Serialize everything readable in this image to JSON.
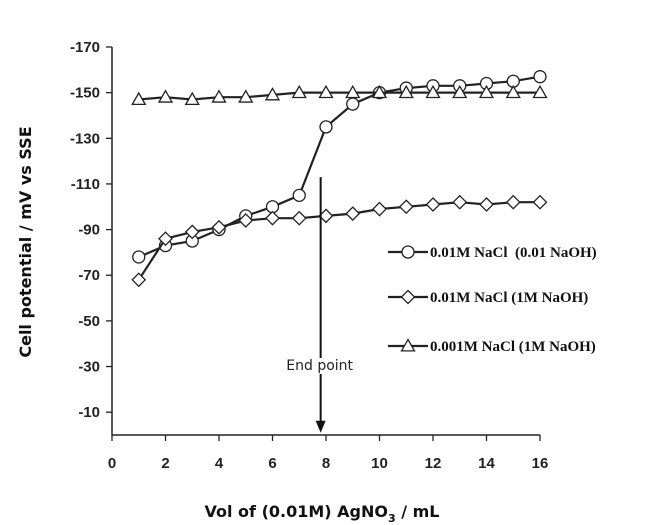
{
  "chart_data": {
    "type": "line",
    "xlabel_main": "Vol of (0.01M) AgNO",
    "xlabel_sub": "3",
    "xlabel_tail": " / mL",
    "ylabel": "Cell potential / mV vs SSE",
    "xlim": [
      0,
      16
    ],
    "ylim": [
      0,
      -170
    ],
    "x_ticks": [
      "0",
      "2",
      "4",
      "6",
      "8",
      "10",
      "12",
      "14",
      "16"
    ],
    "y_ticks": [
      "-10",
      "-30",
      "-50",
      "-70",
      "-90",
      "-110",
      "-130",
      "-150",
      "-170"
    ],
    "grid": false,
    "legend_position": "right",
    "annotation": {
      "text": "End point",
      "x": 7.8,
      "y_top": -113,
      "y_bottom": -1
    },
    "series": [
      {
        "name": "0.01M NaCl  (0.01 NaOH)",
        "marker": "circle",
        "x": [
          1,
          2,
          3,
          4,
          5,
          6,
          7,
          8,
          9,
          10,
          11,
          12,
          13,
          14,
          15,
          16
        ],
        "values": [
          -78,
          -83,
          -85,
          -90,
          -96,
          -100,
          -105,
          -135,
          -145,
          -150,
          -152,
          -153,
          -153,
          -154,
          -155,
          -157
        ]
      },
      {
        "name": "0.01M NaCl (1M NaOH)",
        "marker": "diamond",
        "x": [
          1,
          2,
          3,
          4,
          5,
          6,
          7,
          8,
          9,
          10,
          11,
          12,
          13,
          14,
          15,
          16
        ],
        "values": [
          -68,
          -86,
          -89,
          -91,
          -94,
          -95,
          -95,
          -96,
          -97,
          -99,
          -100,
          -101,
          -102,
          -101,
          -102,
          -102
        ]
      },
      {
        "name": "0.001M NaCl (1M NaOH)",
        "marker": "triangle",
        "x": [
          1,
          2,
          3,
          4,
          5,
          6,
          7,
          8,
          9,
          10,
          11,
          12,
          13,
          14,
          15,
          16
        ],
        "values": [
          -147,
          -148,
          -147,
          -148,
          -148,
          -149,
          -150,
          -150,
          -150,
          -150,
          -150,
          -150,
          -150,
          -150,
          -150,
          -150
        ]
      }
    ]
  }
}
